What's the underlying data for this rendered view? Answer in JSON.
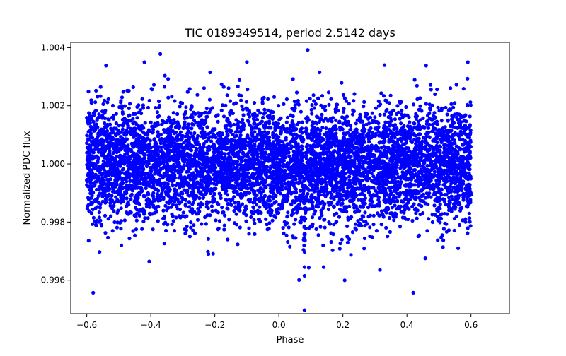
{
  "chart_data": {
    "type": "scatter",
    "title": "TIC 0189349514, period 2.5142 days",
    "xlabel": "Phase",
    "ylabel": "Normalized PDC flux",
    "xlim": [
      -0.65,
      0.72
    ],
    "ylim": [
      0.99485,
      1.00418
    ],
    "x_ticks": [
      -0.6,
      -0.4,
      -0.2,
      0.0,
      0.2,
      0.4,
      0.6
    ],
    "x_tick_labels": [
      "−0.6",
      "−0.4",
      "−0.2",
      "0.0",
      "0.2",
      "0.4",
      "0.6"
    ],
    "y_ticks": [
      0.996,
      0.998,
      1.0,
      1.002,
      1.004
    ],
    "y_tick_labels": [
      "0.996",
      "0.998",
      "1.000",
      "1.002",
      "1.004"
    ],
    "grid": false,
    "legend": "none",
    "marker_color": "#0000ff",
    "series": [
      {
        "x_range": [
          -0.6,
          0.6
        ],
        "baseline_flux": 1.0,
        "scatter_sigma": 0.001,
        "transit": {
          "phase_center": 0.08,
          "depth": 0.0025,
          "half_width": 0.004
        },
        "points": [
          [
            -0.58,
            0.99557
          ],
          [
            -0.56,
            0.99697
          ],
          [
            -0.54,
            1.00338
          ],
          [
            -0.42,
            1.0035
          ],
          [
            -0.1,
            1.0035
          ],
          [
            0.09,
            1.00392
          ],
          [
            0.08,
            0.99497
          ],
          [
            0.08,
            0.99615
          ],
          [
            0.08,
            0.99645
          ],
          [
            0.08,
            0.99697
          ],
          [
            0.079,
            0.9972
          ],
          [
            0.081,
            0.9976
          ],
          [
            0.42,
            0.99557
          ],
          [
            0.33,
            1.0034
          ],
          [
            0.46,
            1.00338
          ],
          [
            0.59,
            1.0035
          ],
          [
            0.14,
            0.99645
          ],
          [
            -0.22,
            0.9969
          ],
          [
            -0.16,
            0.9974
          ],
          [
            0.56,
            0.9971
          ]
        ]
      }
    ]
  }
}
